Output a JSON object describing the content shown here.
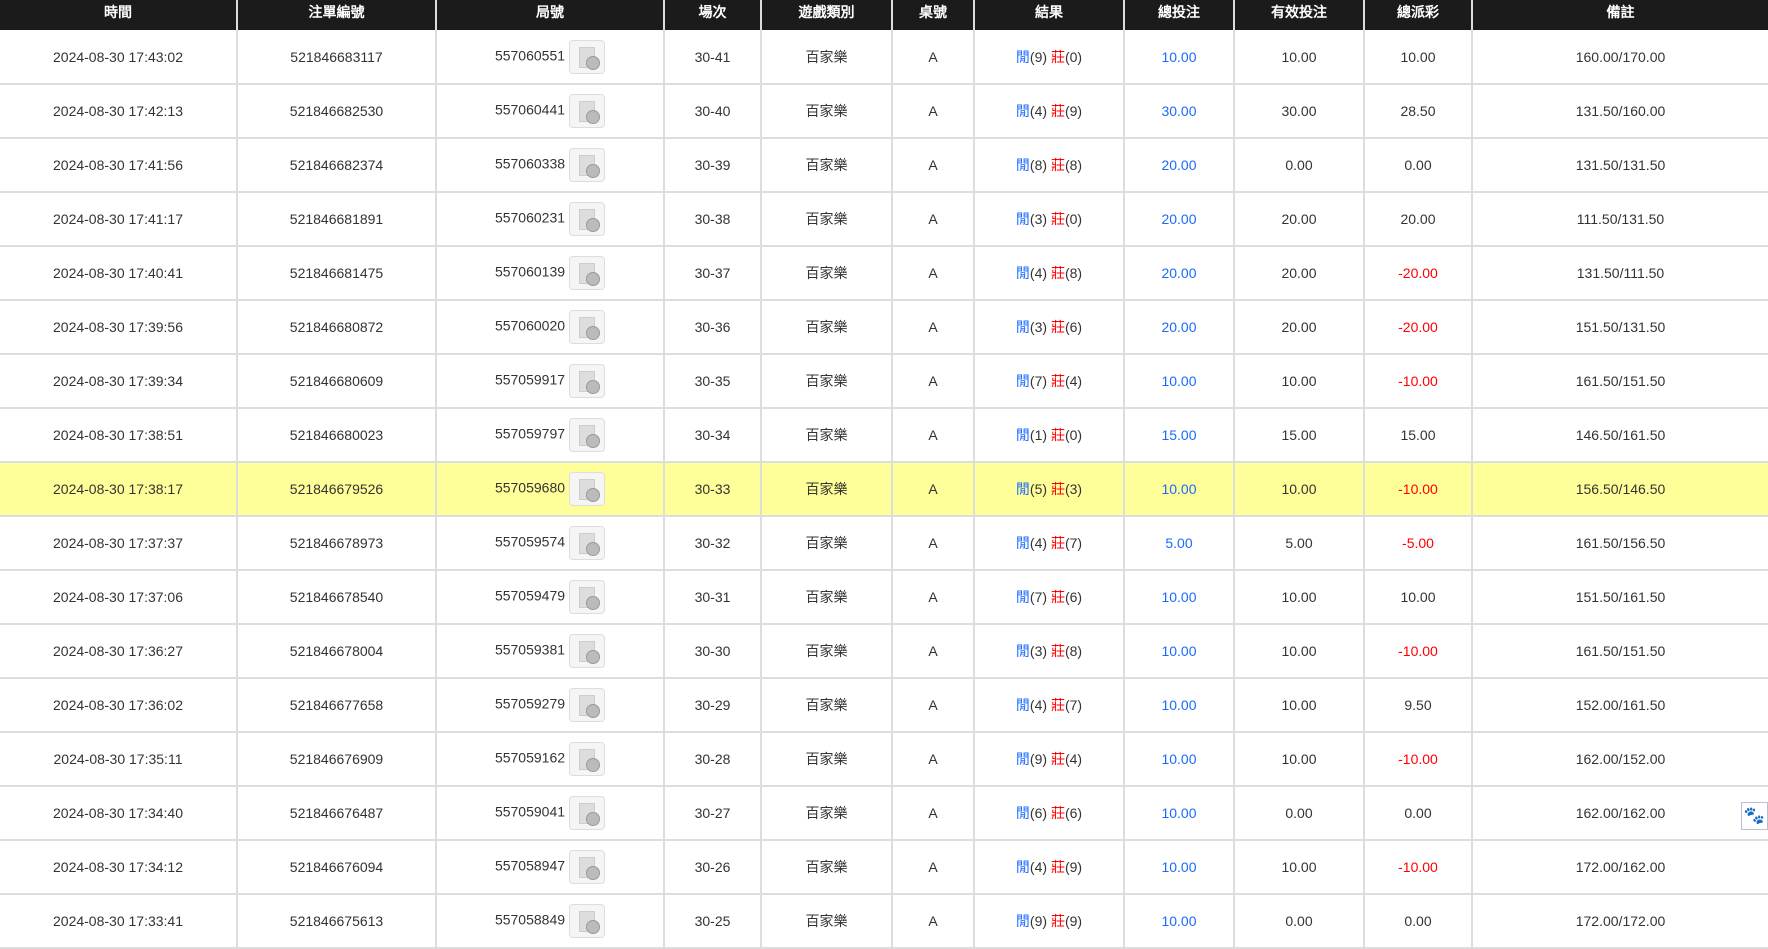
{
  "headers": [
    "時間",
    "注單編號",
    "局號",
    "場次",
    "遊戲類別",
    "桌號",
    "結果",
    "總投注",
    "有效投注",
    "總派彩",
    "備註"
  ],
  "player_label": "閒",
  "banker_label": "莊",
  "highlight_row": 8,
  "rows": [
    [
      "2024-08-30 17:43:02",
      "521846683117",
      "557060551",
      "30-41",
      "百家樂",
      "A",
      "9",
      "0",
      "10.00",
      "10.00",
      "10.00",
      "160.00/170.00"
    ],
    [
      "2024-08-30 17:42:13",
      "521846682530",
      "557060441",
      "30-40",
      "百家樂",
      "A",
      "4",
      "9",
      "30.00",
      "30.00",
      "28.50",
      "131.50/160.00"
    ],
    [
      "2024-08-30 17:41:56",
      "521846682374",
      "557060338",
      "30-39",
      "百家樂",
      "A",
      "8",
      "8",
      "20.00",
      "0.00",
      "0.00",
      "131.50/131.50"
    ],
    [
      "2024-08-30 17:41:17",
      "521846681891",
      "557060231",
      "30-38",
      "百家樂",
      "A",
      "3",
      "0",
      "20.00",
      "20.00",
      "20.00",
      "111.50/131.50"
    ],
    [
      "2024-08-30 17:40:41",
      "521846681475",
      "557060139",
      "30-37",
      "百家樂",
      "A",
      "4",
      "8",
      "20.00",
      "20.00",
      "-20.00",
      "131.50/111.50"
    ],
    [
      "2024-08-30 17:39:56",
      "521846680872",
      "557060020",
      "30-36",
      "百家樂",
      "A",
      "3",
      "6",
      "20.00",
      "20.00",
      "-20.00",
      "151.50/131.50"
    ],
    [
      "2024-08-30 17:39:34",
      "521846680609",
      "557059917",
      "30-35",
      "百家樂",
      "A",
      "7",
      "4",
      "10.00",
      "10.00",
      "-10.00",
      "161.50/151.50"
    ],
    [
      "2024-08-30 17:38:51",
      "521846680023",
      "557059797",
      "30-34",
      "百家樂",
      "A",
      "1",
      "0",
      "15.00",
      "15.00",
      "15.00",
      "146.50/161.50"
    ],
    [
      "2024-08-30 17:38:17",
      "521846679526",
      "557059680",
      "30-33",
      "百家樂",
      "A",
      "5",
      "3",
      "10.00",
      "10.00",
      "-10.00",
      "156.50/146.50"
    ],
    [
      "2024-08-30 17:37:37",
      "521846678973",
      "557059574",
      "30-32",
      "百家樂",
      "A",
      "4",
      "7",
      "5.00",
      "5.00",
      "-5.00",
      "161.50/156.50"
    ],
    [
      "2024-08-30 17:37:06",
      "521846678540",
      "557059479",
      "30-31",
      "百家樂",
      "A",
      "7",
      "6",
      "10.00",
      "10.00",
      "10.00",
      "151.50/161.50"
    ],
    [
      "2024-08-30 17:36:27",
      "521846678004",
      "557059381",
      "30-30",
      "百家樂",
      "A",
      "3",
      "8",
      "10.00",
      "10.00",
      "-10.00",
      "161.50/151.50"
    ],
    [
      "2024-08-30 17:36:02",
      "521846677658",
      "557059279",
      "30-29",
      "百家樂",
      "A",
      "4",
      "7",
      "10.00",
      "10.00",
      "9.50",
      "152.00/161.50"
    ],
    [
      "2024-08-30 17:35:11",
      "521846676909",
      "557059162",
      "30-28",
      "百家樂",
      "A",
      "9",
      "4",
      "10.00",
      "10.00",
      "-10.00",
      "162.00/152.00"
    ],
    [
      "2024-08-30 17:34:40",
      "521846676487",
      "557059041",
      "30-27",
      "百家樂",
      "A",
      "6",
      "6",
      "10.00",
      "0.00",
      "0.00",
      "162.00/162.00"
    ],
    [
      "2024-08-30 17:34:12",
      "521846676094",
      "557058947",
      "30-26",
      "百家樂",
      "A",
      "4",
      "9",
      "10.00",
      "10.00",
      "-10.00",
      "172.00/162.00"
    ],
    [
      "2024-08-30 17:33:41",
      "521846675613",
      "557058849",
      "30-25",
      "百家樂",
      "A",
      "9",
      "9",
      "10.00",
      "0.00",
      "0.00",
      "172.00/172.00"
    ]
  ],
  "colors": {
    "header_bg": "#1b1b1b",
    "player": "#1a6aff",
    "banker": "#ff0000",
    "negative": "#ff0000",
    "highlight": "#ffff99"
  },
  "float_icon": "baidu-paw-icon"
}
